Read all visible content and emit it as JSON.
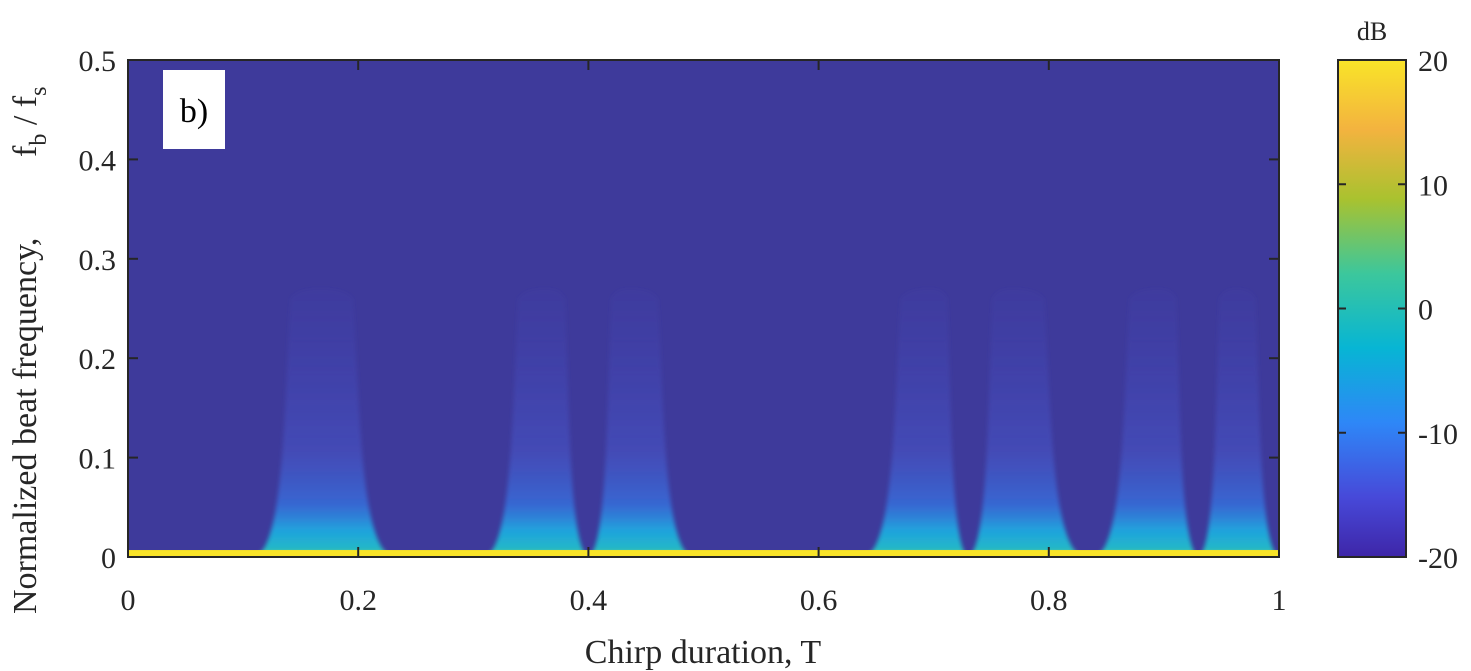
{
  "chart_data": {
    "type": "heatmap",
    "panel_label": "b)",
    "xlabel": "Chirp duration,   T",
    "ylabel_main": "Normalized beat frequency,",
    "ylabel_symbol": {
      "f1": "f",
      "sub1": "b",
      "slash": " / ",
      "f2": "f",
      "sub2": "s"
    },
    "xlim": [
      0,
      1
    ],
    "ylim": [
      0,
      0.5
    ],
    "xticks": [
      0,
      0.2,
      0.4,
      0.6,
      0.8,
      1
    ],
    "xtick_labels": [
      "0",
      "0.2",
      "0.4",
      "0.6",
      "0.8",
      "1"
    ],
    "yticks": [
      0,
      0.1,
      0.2,
      0.3,
      0.4,
      0.5
    ],
    "ytick_labels": [
      "0",
      "0.1",
      "0.2",
      "0.3",
      "0.4",
      "0.5"
    ],
    "colorbar": {
      "title": "dB",
      "range": [
        -20,
        20
      ],
      "ticks": [
        -20,
        -10,
        0,
        10,
        20
      ],
      "tick_labels": [
        "-20",
        "-10",
        "0",
        "10",
        "20"
      ],
      "colormap": "parula",
      "colors": [
        "#3e26a8",
        "#4749d9",
        "#2e87f7",
        "#07b5d4",
        "#3cc79c",
        "#a9c22f",
        "#f3b33f",
        "#f9e428"
      ]
    },
    "background_level_db": -20,
    "baseline_band": {
      "f_max": 0.007,
      "level_db": 20
    },
    "bumps": [
      {
        "t_start": 0.11,
        "t_end": 0.23,
        "center": 0.167,
        "f_max": 0.27
      },
      {
        "t_start": 0.31,
        "t_end": 0.4,
        "center": 0.363,
        "f_max": 0.27
      },
      {
        "t_start": 0.4,
        "t_end": 0.49,
        "center": 0.436,
        "f_max": 0.27
      },
      {
        "t_start": 0.64,
        "t_end": 0.73,
        "center": 0.697,
        "f_max": 0.27
      },
      {
        "t_start": 0.73,
        "t_end": 0.83,
        "center": 0.768,
        "f_max": 0.27
      },
      {
        "t_start": 0.84,
        "t_end": 0.93,
        "center": 0.895,
        "f_max": 0.27
      },
      {
        "t_start": 0.93,
        "t_end": 1.0,
        "center": 0.963,
        "f_max": 0.27
      }
    ]
  }
}
